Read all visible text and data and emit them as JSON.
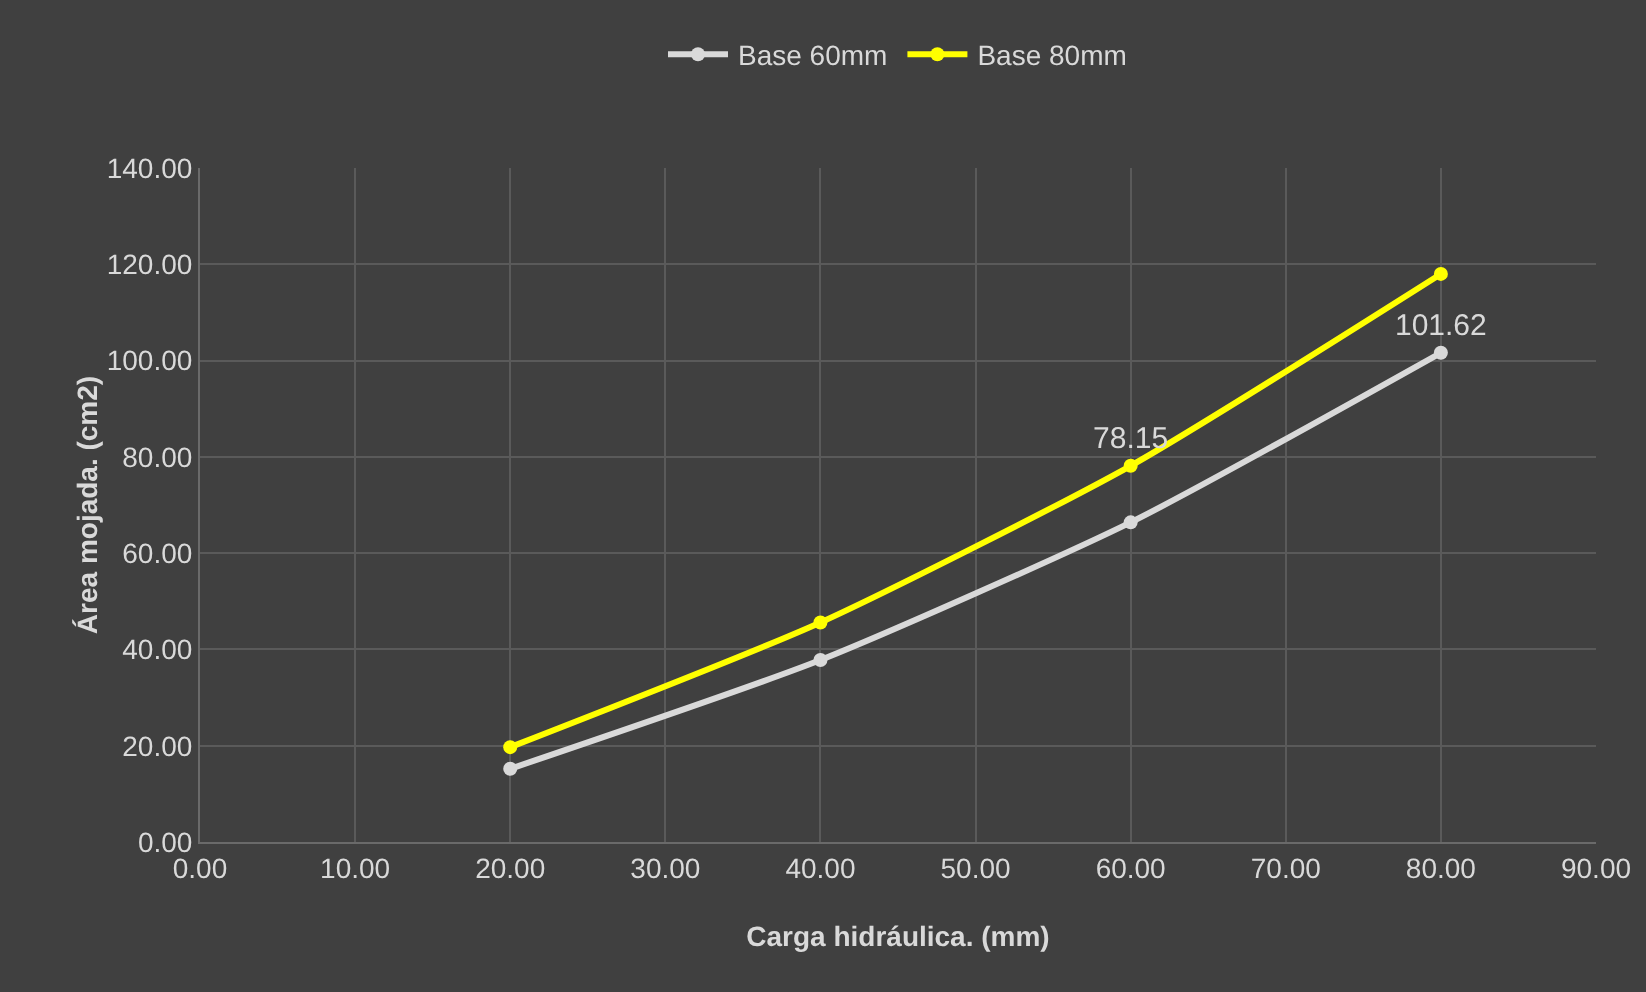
{
  "chart_data": {
    "type": "line",
    "xlabel": "Carga hidráulica. (mm)",
    "ylabel": "Área mojada. (cm2)",
    "x": [
      20,
      40,
      60,
      80
    ],
    "series": [
      {
        "name": "Base 60mm",
        "color": "#d9d9d9",
        "values": [
          15.2,
          37.8,
          66.4,
          101.62
        ],
        "value_labels": [
          null,
          null,
          null,
          "101.62"
        ]
      },
      {
        "name": "Base 80mm",
        "color": "#ffff00",
        "values": [
          19.7,
          45.6,
          78.15,
          118
        ],
        "value_labels": [
          null,
          null,
          "78.15",
          null
        ]
      }
    ],
    "xlim": [
      0,
      90
    ],
    "xticks": [
      {
        "value": 0,
        "label": "0.00"
      },
      {
        "value": 10,
        "label": "10.00"
      },
      {
        "value": 20,
        "label": "20.00"
      },
      {
        "value": 30,
        "label": "30.00"
      },
      {
        "value": 40,
        "label": "40.00"
      },
      {
        "value": 50,
        "label": "50.00"
      },
      {
        "value": 60,
        "label": "60.00"
      },
      {
        "value": 70,
        "label": "70.00"
      },
      {
        "value": 80,
        "label": "80.00"
      },
      {
        "value": 90,
        "label": "90.00"
      }
    ],
    "ylim": [
      0,
      140
    ],
    "yticks": [
      {
        "value": 0,
        "label": "0.00"
      },
      {
        "value": 20,
        "label": "20.00"
      },
      {
        "value": 40,
        "label": "40.00"
      },
      {
        "value": 60,
        "label": "60.00"
      },
      {
        "value": 80,
        "label": "80.00"
      },
      {
        "value": 100,
        "label": "100.00"
      },
      {
        "value": 120,
        "label": "120.00"
      },
      {
        "value": 140,
        "label": "140.00"
      }
    ],
    "grid": true,
    "legend": "top",
    "marker": "circle",
    "line_style": "solid"
  }
}
